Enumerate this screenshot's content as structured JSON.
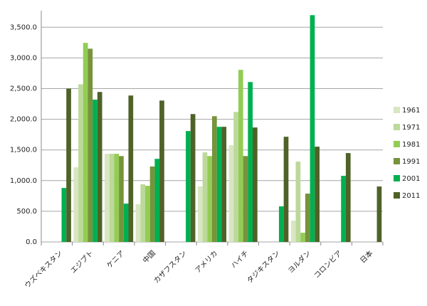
{
  "chart_data": {
    "type": "bar",
    "categories": [
      "ウズベキスタン",
      "エジプト",
      "ケニア",
      "中国",
      "カザフスタン",
      "アメリカ",
      "ハイチ",
      "タジキスタン",
      "ヨルダン",
      "コロンビア",
      "日本"
    ],
    "series": [
      {
        "name": "1961",
        "color": "#d8e6c2",
        "values": [
          null,
          1217,
          1437,
          615,
          null,
          905,
          1576,
          null,
          348,
          null,
          null
        ]
      },
      {
        "name": "1971",
        "color": "#bcd99a",
        "values": [
          null,
          2570,
          1437,
          940,
          null,
          1460,
          2120,
          null,
          1310,
          null,
          null
        ]
      },
      {
        "name": "1981",
        "color": "#92cc55",
        "values": [
          null,
          3245,
          1437,
          915,
          null,
          1400,
          2805,
          null,
          150,
          null,
          null
        ]
      },
      {
        "name": "1991",
        "color": "#77933c",
        "values": [
          null,
          3150,
          1400,
          1230,
          null,
          2050,
          1400,
          null,
          788,
          null,
          null
        ]
      },
      {
        "name": "2001",
        "color": "#00b050",
        "values": [
          880,
          2320,
          625,
          1355,
          1808,
          1877,
          2607,
          580,
          3697,
          1078,
          null
        ]
      },
      {
        "name": "2011",
        "color": "#4f6228",
        "values": [
          2500,
          2445,
          2387,
          2305,
          2085,
          1877,
          1866,
          1715,
          1553,
          1449,
          904
        ]
      }
    ],
    "ylim": [
      0,
      3770
    ],
    "yticks": [
      {
        "value": 0,
        "label": "0.0"
      },
      {
        "value": 500,
        "label": "500.0"
      },
      {
        "value": 1000,
        "label": "1,000.0"
      },
      {
        "value": 1500,
        "label": "1,500.0"
      },
      {
        "value": 2000,
        "label": "2,000.0"
      },
      {
        "value": 2500,
        "label": "2,500.0"
      },
      {
        "value": 3000,
        "label": "3,000.0"
      },
      {
        "value": 3500,
        "label": "3,500.0"
      }
    ],
    "grid": true,
    "legend": "right"
  }
}
